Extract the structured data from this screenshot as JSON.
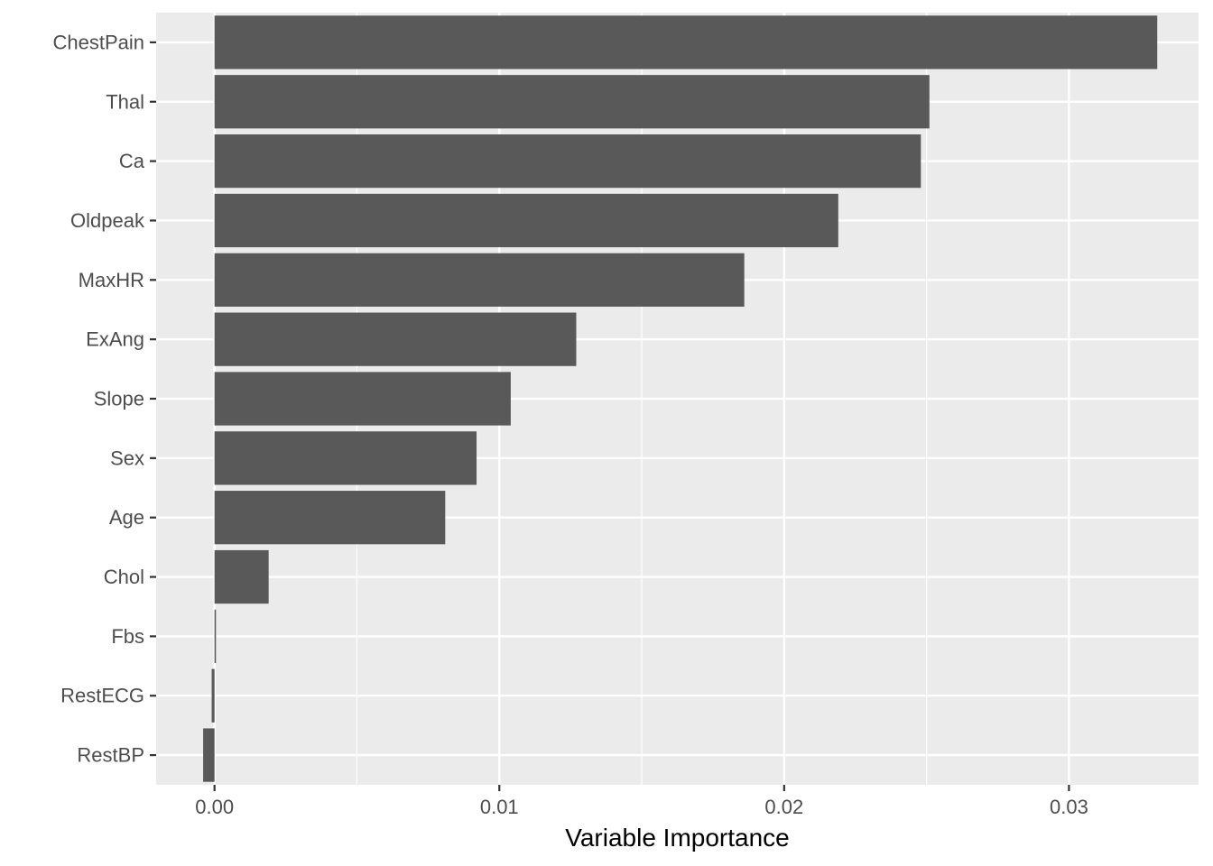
{
  "chart_data": {
    "type": "bar",
    "orientation": "horizontal",
    "categories": [
      "ChestPain",
      "Thal",
      "Ca",
      "Oldpeak",
      "MaxHR",
      "ExAng",
      "Slope",
      "Sex",
      "Age",
      "Chol",
      "Fbs",
      "RestECG",
      "RestBP"
    ],
    "values": [
      0.0331,
      0.0251,
      0.0248,
      0.0219,
      0.0186,
      0.0127,
      0.0104,
      0.0092,
      0.0081,
      0.0019,
      5e-05,
      -0.0001,
      -0.0004
    ],
    "title": "",
    "xlabel": "Variable Importance",
    "ylabel": "",
    "xlim": [
      -0.00205,
      0.03455
    ],
    "xticks": [
      0.0,
      0.01,
      0.02,
      0.03
    ],
    "xtick_labels": [
      "0.00",
      "0.01",
      "0.02",
      "0.03"
    ],
    "grid": true,
    "legend": "none",
    "colors": {
      "bar": "#595959",
      "panel_background": "#ebebeb",
      "grid": "#ffffff",
      "tick_text": "#4d4d4d",
      "tick_mark": "#333333",
      "axis_title": "#000000"
    }
  }
}
